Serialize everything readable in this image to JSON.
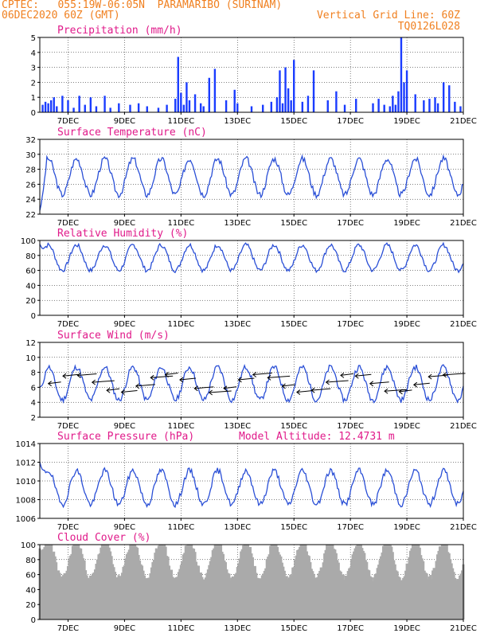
{
  "header": {
    "line1": "CPTEC:   055:19W-06:05N  PARAMARIBO (SURINAM)",
    "line2": "06DEC2020 60Z (GMT)",
    "grid_note": "Vertical Grid Line: 60Z",
    "code": "TQ0126L028"
  },
  "colors": {
    "header": "#f08020",
    "title": "#e01a8a",
    "bars": "#1a3cff",
    "line": "#2a4fd6",
    "cloud": "#aaaaaa",
    "arrow": "#000000"
  },
  "x_axis": {
    "range_days": [
      6.0,
      21.0
    ],
    "ticks": [
      {
        "day": 7,
        "label": "7DEC"
      },
      {
        "day": 9,
        "label": "9DEC"
      },
      {
        "day": 11,
        "label": "11DEC"
      },
      {
        "day": 13,
        "label": "13DEC"
      },
      {
        "day": 15,
        "label": "15DEC"
      },
      {
        "day": 17,
        "label": "17DEC"
      },
      {
        "day": 19,
        "label": "19DEC"
      },
      {
        "day": 21,
        "label": "21DEC"
      }
    ]
  },
  "chart_data": [
    {
      "type": "bar",
      "title": "Precipitation (mm/h)",
      "ylim": [
        0,
        5
      ],
      "yticks": [
        0,
        1,
        2,
        3,
        4,
        5
      ],
      "x": [
        6.1,
        6.2,
        6.3,
        6.4,
        6.5,
        6.6,
        6.8,
        7.0,
        7.2,
        7.4,
        7.6,
        7.8,
        8.0,
        8.3,
        8.5,
        8.8,
        9.2,
        9.5,
        9.8,
        10.2,
        10.5,
        10.8,
        10.9,
        11.0,
        11.1,
        11.2,
        11.3,
        11.5,
        11.7,
        11.8,
        12.0,
        12.2,
        12.6,
        12.9,
        13.0,
        13.5,
        13.9,
        14.2,
        14.4,
        14.5,
        14.6,
        14.7,
        14.8,
        14.9,
        15.0,
        15.3,
        15.5,
        15.7,
        16.2,
        16.5,
        16.8,
        17.2,
        17.8,
        18.0,
        18.2,
        18.4,
        18.5,
        18.6,
        18.7,
        18.8,
        18.9,
        19.0,
        19.3,
        19.6,
        19.8,
        20.0,
        20.1,
        20.3,
        20.5,
        20.7,
        20.9
      ],
      "values": [
        0.5,
        0.7,
        0.6,
        0.8,
        1.0,
        0.4,
        1.1,
        0.8,
        0.3,
        1.1,
        0.5,
        1.0,
        0.4,
        1.1,
        0.3,
        0.6,
        0.5,
        0.6,
        0.4,
        0.3,
        0.5,
        0.9,
        3.7,
        1.3,
        0.5,
        2.0,
        0.8,
        1.2,
        0.6,
        0.4,
        2.3,
        2.9,
        0.8,
        1.5,
        0.6,
        0.4,
        0.5,
        0.7,
        1.0,
        2.8,
        0.6,
        3.0,
        1.6,
        0.8,
        3.5,
        0.7,
        1.1,
        2.8,
        0.8,
        1.4,
        0.5,
        0.9,
        0.6,
        0.9,
        0.5,
        0.4,
        1.1,
        0.5,
        1.4,
        5.0,
        2.0,
        2.8,
        1.2,
        0.8,
        0.9,
        1.0,
        0.6,
        2.0,
        1.8,
        0.7,
        0.4
      ]
    },
    {
      "type": "line",
      "title": "Surface Temperature (nC)",
      "ylim": [
        22,
        32
      ],
      "yticks": [
        22,
        24,
        26,
        28,
        30,
        32
      ],
      "series": [
        {
          "mean": 27.0,
          "amp": 2.4,
          "start": 22.5,
          "seed": 3
        }
      ]
    },
    {
      "type": "line",
      "title": "Relative Humidity (%)",
      "ylim": [
        0,
        100
      ],
      "yticks": [
        0,
        20,
        40,
        60,
        80,
        100
      ],
      "series": [
        {
          "mean": 77,
          "amp": 17,
          "start": 95,
          "seed": 7
        }
      ]
    },
    {
      "type": "line",
      "title": "Surface Wind (m/s)",
      "ylim": [
        2,
        12
      ],
      "yticks": [
        2,
        4,
        6,
        8,
        10,
        12
      ],
      "series": [
        {
          "mean": 6.5,
          "amp": 2.2,
          "start": 6.0,
          "seed": 11
        }
      ],
      "wind_arrows": {
        "count": 28,
        "direction": "from east, pointing west"
      }
    },
    {
      "type": "line",
      "title": "Surface Pressure (hPa)",
      "annotation": "Model Altitude: 12.4731 m",
      "ylim": [
        1006,
        1014
      ],
      "yticks": [
        1006,
        1008,
        1010,
        1012,
        1014
      ],
      "series": [
        {
          "mean": 1009.3,
          "amp": 1.8,
          "start": 1012.0,
          "seed": 19
        }
      ]
    },
    {
      "type": "area",
      "title": "Cloud Cover (%)",
      "ylim": [
        0,
        100
      ],
      "yticks": [
        0,
        20,
        40,
        60,
        80,
        100
      ],
      "series": [
        {
          "mean": 80,
          "amp": 25,
          "start": 95,
          "seed": 23
        }
      ]
    }
  ]
}
